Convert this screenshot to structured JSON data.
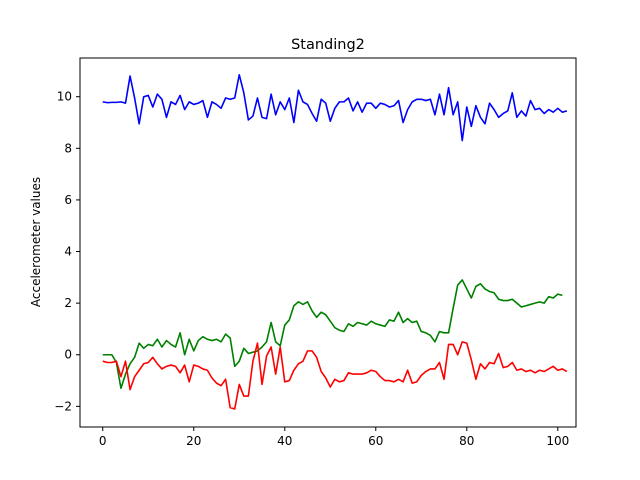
{
  "chart_data": {
    "type": "line",
    "title": "Standing2",
    "xlabel": "",
    "ylabel": "Accelerometer values",
    "xlim": [
      -5,
      104
    ],
    "ylim": [
      -2.8,
      11.5
    ],
    "xticks": [
      0,
      20,
      40,
      60,
      80,
      100
    ],
    "yticks": [
      -2,
      0,
      2,
      4,
      6,
      8,
      10
    ],
    "grid": false,
    "legend": "none",
    "series": [
      {
        "color": "#0000ff",
        "values": [
          9.8,
          9.77,
          9.78,
          9.78,
          9.8,
          9.75,
          10.8,
          9.95,
          8.95,
          10.0,
          10.05,
          9.6,
          10.1,
          9.9,
          9.2,
          9.8,
          9.7,
          10.05,
          9.5,
          9.8,
          9.7,
          9.75,
          9.85,
          9.2,
          9.8,
          9.7,
          9.55,
          9.95,
          9.9,
          9.95,
          10.85,
          10.15,
          9.1,
          9.25,
          9.95,
          9.2,
          9.15,
          10.1,
          9.3,
          9.8,
          9.5,
          9.95,
          9.0,
          10.25,
          9.8,
          9.7,
          9.35,
          9.05,
          9.9,
          9.75,
          9.05,
          9.55,
          9.8,
          9.8,
          9.95,
          9.45,
          9.8,
          9.4,
          9.75,
          9.75,
          9.55,
          9.75,
          9.7,
          9.6,
          9.65,
          9.85,
          9.0,
          9.5,
          9.8,
          9.9,
          9.9,
          9.85,
          9.9,
          9.3,
          10.1,
          9.3,
          10.35,
          9.3,
          9.8,
          8.3,
          9.6,
          8.85,
          9.65,
          9.2,
          8.95,
          9.75,
          9.5,
          9.2,
          9.35,
          9.45,
          10.15,
          9.2,
          9.45,
          9.25,
          9.85,
          9.5,
          9.55,
          9.35,
          9.5,
          9.4,
          9.55,
          9.4,
          9.45
        ]
      },
      {
        "color": "#008000",
        "values": [
          0.0,
          0.0,
          0.0,
          -0.3,
          -1.3,
          -0.75,
          -0.35,
          -0.1,
          0.45,
          0.25,
          0.4,
          0.35,
          0.6,
          0.3,
          0.55,
          0.4,
          0.3,
          0.85,
          0.0,
          0.6,
          0.15,
          0.55,
          0.7,
          0.6,
          0.55,
          0.6,
          0.5,
          0.8,
          0.65,
          -0.45,
          -0.25,
          0.25,
          0.05,
          0.1,
          0.15,
          0.3,
          0.5,
          1.25,
          0.5,
          0.35,
          1.15,
          1.35,
          1.9,
          2.05,
          1.95,
          2.05,
          1.7,
          1.45,
          1.65,
          1.55,
          1.3,
          1.05,
          0.95,
          0.9,
          1.2,
          1.1,
          1.25,
          1.2,
          1.15,
          1.3,
          1.2,
          1.15,
          1.1,
          1.35,
          1.3,
          1.65,
          1.25,
          1.4,
          1.25,
          1.3,
          0.9,
          0.85,
          0.75,
          0.5,
          0.9,
          0.85,
          0.85,
          1.8,
          2.7,
          2.9,
          2.55,
          2.2,
          2.65,
          2.75,
          2.55,
          2.45,
          2.4,
          2.15,
          2.1,
          2.1,
          2.15,
          2.0,
          1.85,
          1.9,
          1.95,
          2.0,
          2.05,
          2.0,
          2.25,
          2.2,
          2.35,
          2.3
        ]
      },
      {
        "color": "#ff0000",
        "values": [
          -0.25,
          -0.3,
          -0.3,
          -0.25,
          -0.85,
          -0.25,
          -1.35,
          -0.85,
          -0.6,
          -0.35,
          -0.3,
          -0.1,
          -0.35,
          -0.55,
          -0.45,
          -0.4,
          -0.45,
          -0.7,
          -0.4,
          -1.05,
          -0.4,
          -0.45,
          -0.55,
          -0.6,
          -0.9,
          -1.1,
          -1.2,
          -0.95,
          -2.05,
          -2.1,
          -1.15,
          -1.6,
          -1.6,
          -0.25,
          0.45,
          -1.15,
          -0.05,
          0.3,
          -0.75,
          0.3,
          -1.05,
          -1.0,
          -0.6,
          -0.35,
          -0.25,
          0.15,
          0.15,
          -0.1,
          -0.65,
          -0.9,
          -1.25,
          -0.95,
          -1.05,
          -1.0,
          -0.7,
          -0.75,
          -0.75,
          -0.75,
          -0.7,
          -0.6,
          -0.65,
          -0.85,
          -1.0,
          -1.0,
          -1.05,
          -0.95,
          -1.05,
          -0.6,
          -1.1,
          -1.05,
          -0.8,
          -0.65,
          -0.55,
          -0.55,
          -0.3,
          -0.95,
          0.4,
          0.4,
          0.0,
          0.5,
          0.45,
          -0.2,
          -0.95,
          -0.35,
          -0.55,
          -0.3,
          -0.35,
          0.05,
          -0.5,
          -0.45,
          -0.3,
          -0.6,
          -0.55,
          -0.65,
          -0.6,
          -0.7,
          -0.6,
          -0.65,
          -0.55,
          -0.45,
          -0.6,
          -0.55,
          -0.65
        ]
      }
    ]
  }
}
